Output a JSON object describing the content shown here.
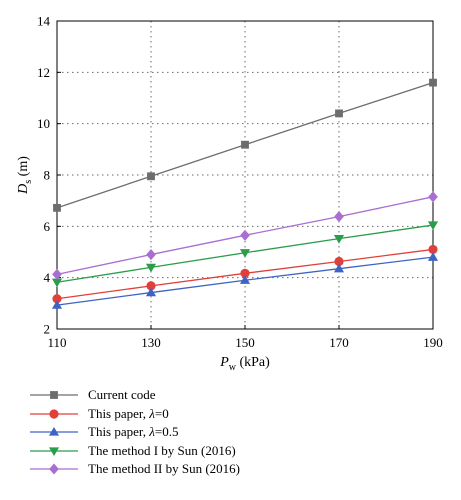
{
  "chart_data": {
    "type": "line",
    "x": [
      110,
      130,
      150,
      170,
      190
    ],
    "xlim": [
      110,
      190
    ],
    "ylim": [
      2,
      14
    ],
    "xticks": [
      "110",
      "130",
      "150",
      "170",
      "190"
    ],
    "yticks": [
      "2",
      "4",
      "6",
      "8",
      "10",
      "12",
      "14"
    ],
    "xlabel": {
      "main": "P",
      "sub": "w",
      "unit": " (kPa)"
    },
    "ylabel": {
      "main": "D",
      "sub": "s",
      "unit": " (m)"
    },
    "grid": true,
    "legend_position": "below-plot",
    "series": [
      {
        "name": "Current code",
        "color": "#6d6d6d",
        "marker": "square",
        "values": [
          6.72,
          7.95,
          9.18,
          10.4,
          11.6
        ]
      },
      {
        "name": "This paper, λ=0",
        "name_prefix": "This paper, ",
        "name_symbol": "λ",
        "name_suffix": "=0",
        "color": "#e0403a",
        "marker": "circle",
        "values": [
          3.18,
          3.68,
          4.17,
          4.63,
          5.1
        ]
      },
      {
        "name": "This paper, λ=0.5",
        "name_prefix": "This paper, ",
        "name_symbol": "λ",
        "name_suffix": "=0.5",
        "color": "#3d64c4",
        "marker": "triangle-up",
        "values": [
          2.93,
          3.42,
          3.9,
          4.35,
          4.8
        ]
      },
      {
        "name": "The method I by Sun (2016)",
        "color": "#2a9d4a",
        "marker": "triangle-down",
        "values": [
          3.82,
          4.4,
          4.97,
          5.52,
          6.05
        ]
      },
      {
        "name": "The method II by Sun (2016)",
        "color": "#a86ed2",
        "marker": "diamond",
        "values": [
          4.13,
          4.9,
          5.65,
          6.38,
          7.15
        ]
      }
    ]
  }
}
